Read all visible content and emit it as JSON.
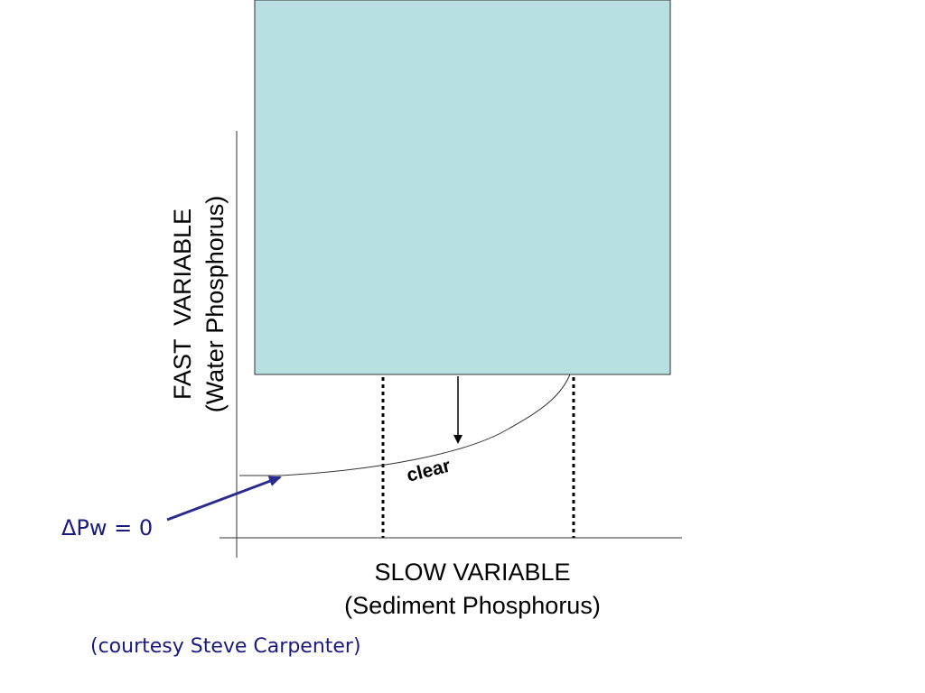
{
  "y_axis": {
    "title": "FAST  VARIABLE",
    "subtitle": "(Water Phosphorus)"
  },
  "x_axis": {
    "title": "SLOW VARIABLE",
    "subtitle": "(Sediment Phosphorus)"
  },
  "curve_label": "clear",
  "equilibrium_label": "ΔPw = 0",
  "credit": "(courtesy Steve Carpenter)"
}
